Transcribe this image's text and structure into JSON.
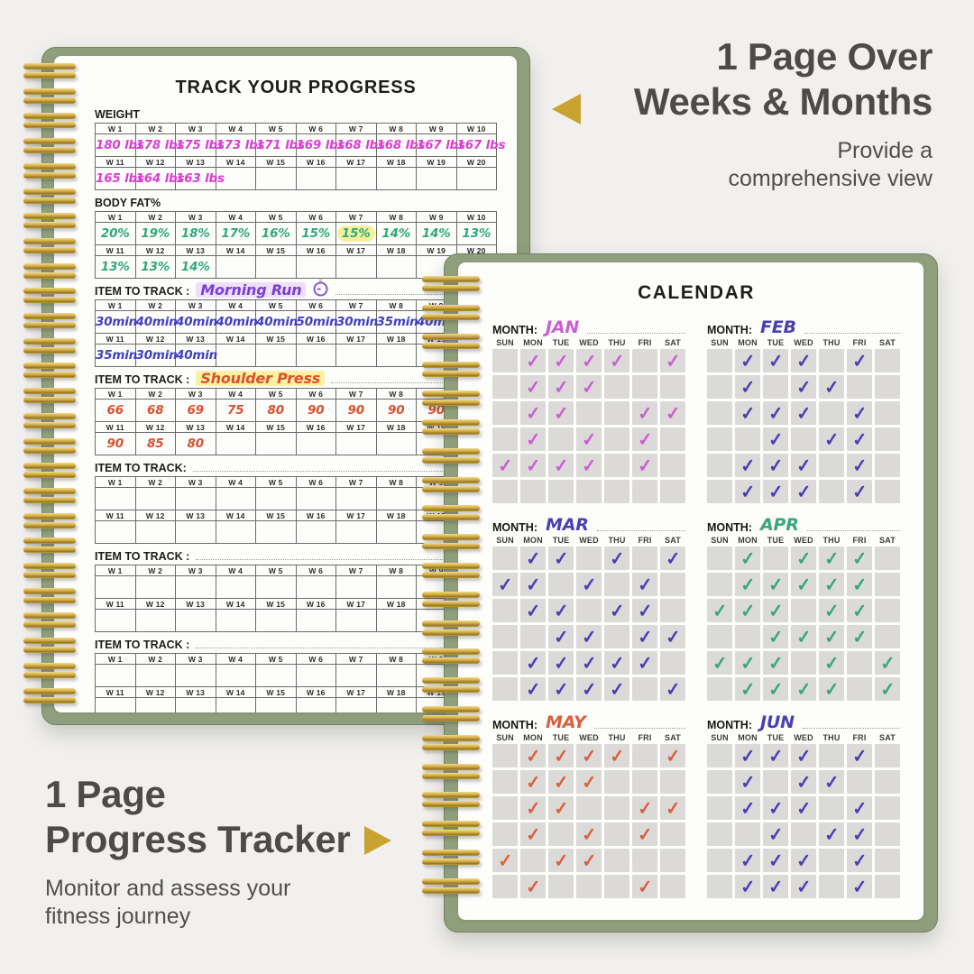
{
  "overlay": {
    "top_right": {
      "title_line1": "1 Page Over",
      "title_line2": "Weeks & Months",
      "subtitle_line1": "Provide a",
      "subtitle_line2": "comprehensive view"
    },
    "bottom_left": {
      "title_line1": "1 Page",
      "title_line2": "Progress Tracker",
      "subtitle_line1": "Monitor and assess your",
      "subtitle_line2": "fitness journey"
    },
    "arrow_color": "#c9a22f"
  },
  "tracker": {
    "title": "TRACK YOUR PROGRESS",
    "week_headers_row1": [
      "W 1",
      "W 2",
      "W 3",
      "W 4",
      "W 5",
      "W 6",
      "W 7",
      "W 8",
      "W 9",
      "W 10"
    ],
    "week_headers_row2": [
      "W 11",
      "W 12",
      "W 13",
      "W 14",
      "W 15",
      "W 16",
      "W 17",
      "W 18",
      "W 19",
      "W 20"
    ],
    "sections": [
      {
        "label": "WEIGHT",
        "ink": "#d93fd0",
        "row1": [
          "180 lbs",
          "178 lbs",
          "175 lbs",
          "173 lbs",
          "171 lbs",
          "169 lbs",
          "168 lbs",
          "168 lbs",
          "167 lbs",
          "167 lbs"
        ],
        "row2": [
          "165 lbs",
          "164 lbs",
          "163 lbs",
          "",
          "",
          "",
          "",
          "",
          "",
          ""
        ]
      },
      {
        "label": "BODY FAT%",
        "ink": "#2fa87d",
        "highlight": {
          "row": 1,
          "col": 6,
          "color": "#f7f09b"
        },
        "row1": [
          "20%",
          "19%",
          "18%",
          "17%",
          "16%",
          "15%",
          "15%",
          "14%",
          "14%",
          "13%"
        ],
        "row2": [
          "13%",
          "13%",
          "14%",
          "",
          "",
          "",
          "",
          "",
          "",
          ""
        ]
      },
      {
        "label": "ITEM TO TRACK :",
        "name": "Morning Run",
        "name_ink": "#7a3fd1",
        "name_highlight": "#eedffb",
        "icon": "stopwatch-icon",
        "ink": "#4040bd",
        "row1": [
          "30min",
          "40min",
          "40min",
          "40min",
          "40min",
          "50min",
          "30min",
          "35min",
          "40min",
          ""
        ],
        "row2": [
          "35min",
          "30min",
          "40min",
          "",
          "",
          "",
          "",
          "",
          "",
          ""
        ]
      },
      {
        "label": "ITEM TO TRACK :",
        "name": "Shoulder Press",
        "name_ink": "#d9512f",
        "name_highlight": "#fbf1a3",
        "ink": "#d9512f",
        "row1": [
          "66",
          "68",
          "69",
          "75",
          "80",
          "90",
          "90",
          "90",
          "90",
          ""
        ],
        "row2": [
          "90",
          "85",
          "80",
          "",
          "",
          "",
          "",
          "",
          "",
          ""
        ]
      },
      {
        "label": "ITEM TO TRACK:",
        "name": "",
        "ink": "#333333",
        "row1": [
          "",
          "",
          "",
          "",
          "",
          "",
          "",
          "",
          "",
          ""
        ],
        "row2": [
          "",
          "",
          "",
          "",
          "",
          "",
          "",
          "",
          "",
          ""
        ]
      },
      {
        "label": "ITEM TO TRACK :",
        "name": "",
        "ink": "#333333",
        "row1": [
          "",
          "",
          "",
          "",
          "",
          "",
          "",
          "",
          "",
          ""
        ],
        "row2": [
          "",
          "",
          "",
          "",
          "",
          "",
          "",
          "",
          "",
          ""
        ]
      },
      {
        "label": "ITEM TO TRACK :",
        "name": "",
        "ink": "#333333",
        "row1": [
          "",
          "",
          "",
          "",
          "",
          "",
          "",
          "",
          "",
          ""
        ],
        "row2": [
          "",
          "",
          "",
          "",
          "",
          "",
          "",
          "",
          "",
          ""
        ]
      }
    ]
  },
  "calendar": {
    "title": "CALENDAR",
    "month_label": "MONTH:",
    "check_glyph": "✓",
    "day_headers": [
      "SUN",
      "MON",
      "TUE",
      "WED",
      "THU",
      "FRI",
      "SAT"
    ],
    "months": [
      {
        "name": "JAN",
        "ink": "#cb5ed2",
        "grid": [
          [
            0,
            1,
            1,
            1,
            1,
            0,
            1
          ],
          [
            0,
            1,
            1,
            1,
            0,
            0,
            0
          ],
          [
            0,
            1,
            1,
            0,
            0,
            1,
            1
          ],
          [
            0,
            1,
            0,
            1,
            0,
            1,
            0
          ],
          [
            1,
            1,
            1,
            1,
            0,
            1,
            0
          ],
          [
            0,
            0,
            0,
            0,
            0,
            0,
            0
          ]
        ]
      },
      {
        "name": "FEB",
        "ink": "#4a3fb2",
        "grid": [
          [
            0,
            1,
            1,
            1,
            0,
            1,
            0
          ],
          [
            0,
            1,
            0,
            1,
            1,
            0,
            0
          ],
          [
            0,
            1,
            1,
            1,
            0,
            1,
            0
          ],
          [
            0,
            0,
            1,
            0,
            1,
            1,
            0
          ],
          [
            0,
            1,
            1,
            1,
            0,
            1,
            0
          ],
          [
            0,
            1,
            1,
            1,
            0,
            1,
            0
          ]
        ]
      },
      {
        "name": "MAR",
        "ink": "#4a3fb2",
        "grid": [
          [
            0,
            1,
            1,
            0,
            1,
            0,
            1
          ],
          [
            1,
            1,
            0,
            1,
            0,
            1,
            0
          ],
          [
            0,
            1,
            1,
            0,
            1,
            1,
            0
          ],
          [
            0,
            0,
            1,
            1,
            0,
            1,
            1
          ],
          [
            0,
            1,
            1,
            1,
            1,
            1,
            0
          ],
          [
            0,
            1,
            1,
            1,
            1,
            0,
            1
          ]
        ]
      },
      {
        "name": "APR",
        "ink": "#3aa57e",
        "grid": [
          [
            0,
            1,
            0,
            1,
            1,
            1,
            0
          ],
          [
            0,
            1,
            1,
            1,
            1,
            1,
            0
          ],
          [
            1,
            1,
            1,
            0,
            1,
            1,
            0
          ],
          [
            0,
            0,
            1,
            1,
            1,
            1,
            0
          ],
          [
            1,
            1,
            1,
            0,
            1,
            0,
            1
          ],
          [
            0,
            1,
            1,
            1,
            1,
            0,
            1
          ]
        ]
      },
      {
        "name": "MAY",
        "ink": "#d9603a",
        "grid": [
          [
            0,
            1,
            1,
            1,
            1,
            0,
            1
          ],
          [
            0,
            1,
            1,
            1,
            0,
            0,
            0
          ],
          [
            0,
            1,
            1,
            0,
            0,
            1,
            1
          ],
          [
            0,
            1,
            0,
            1,
            0,
            1,
            0
          ],
          [
            1,
            0,
            1,
            1,
            0,
            0,
            0
          ],
          [
            0,
            1,
            0,
            0,
            0,
            1,
            0
          ]
        ]
      },
      {
        "name": "JUN",
        "ink": "#4a3fb2",
        "grid": [
          [
            0,
            1,
            1,
            1,
            0,
            1,
            0
          ],
          [
            0,
            1,
            0,
            1,
            1,
            0,
            0
          ],
          [
            0,
            1,
            1,
            1,
            0,
            1,
            0
          ],
          [
            0,
            0,
            1,
            0,
            1,
            1,
            0
          ],
          [
            0,
            1,
            1,
            1,
            0,
            1,
            0
          ],
          [
            0,
            1,
            1,
            1,
            0,
            1,
            0
          ]
        ]
      }
    ]
  }
}
